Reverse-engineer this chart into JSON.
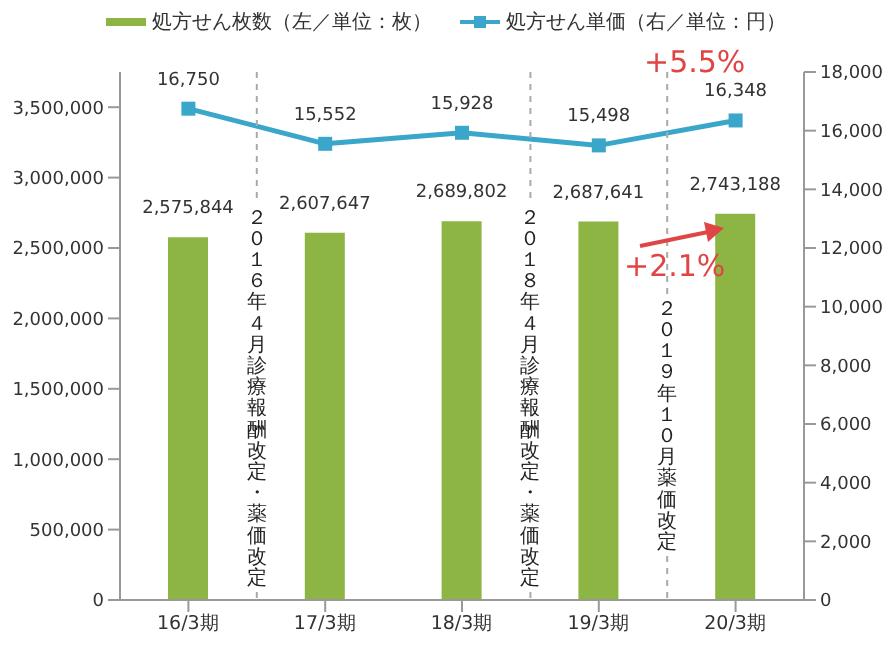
{
  "chart_data": {
    "type": "bar",
    "categories": [
      "16/3期",
      "17/3期",
      "18/3期",
      "19/3期",
      "20/3期"
    ],
    "series": [
      {
        "name": "処方せん枚数（左／単位：枚）",
        "color": "#8cb543",
        "values": [
          2575844,
          2607647,
          2689802,
          2687641,
          2743188
        ],
        "value_labels": [
          "2,575,844",
          "2,607,647",
          "2,689,802",
          "2,687,641",
          "2,743,188"
        ]
      },
      {
        "name": "処方せん単価（右／単位：円）",
        "type": "line",
        "axis": "y2",
        "color": "#3aa6c9",
        "values": [
          16750,
          15552,
          15928,
          15498,
          16348
        ],
        "value_labels": [
          "16,750",
          "15,552",
          "15,928",
          "15,498",
          "16,348"
        ]
      }
    ],
    "ylim": [
      0,
      3750000
    ],
    "yticks": [
      0,
      {
        "value": 500000,
        "label": "500,000"
      },
      {
        "value": 1000000,
        "label": "1,000,000"
      },
      {
        "value": 1500000,
        "label": "1,500,000"
      },
      {
        "value": 2000000,
        "label": "2,000,000"
      },
      {
        "value": 2500000,
        "label": "2,500,000"
      },
      {
        "value": 3000000,
        "label": "3,000,000"
      },
      {
        "value": 3500000,
        "label": "3,500,000"
      }
    ],
    "y2lim": [
      0,
      18000
    ],
    "y2ticks": [
      0,
      {
        "value": 2000,
        "label": "2,000"
      },
      {
        "value": 4000,
        "label": "4,000"
      },
      {
        "value": 6000,
        "label": "6,000"
      },
      {
        "value": 8000,
        "label": "8,000"
      },
      {
        "value": 10000,
        "label": "10,000"
      },
      {
        "value": 12000,
        "label": "12,000"
      },
      {
        "value": 14000,
        "label": "14,000"
      },
      {
        "value": 16000,
        "label": "16,000"
      },
      {
        "value": 18000,
        "label": "18,000"
      }
    ],
    "legend": "top",
    "marker": "square",
    "annotations": [
      "２０１６年４月診療報酬改定・薬価改定",
      "２０１８年４月診療報酬改定・薬価改定",
      "２０１９年１０月薬価改定",
      "+5.5%",
      "+2.1%"
    ]
  }
}
